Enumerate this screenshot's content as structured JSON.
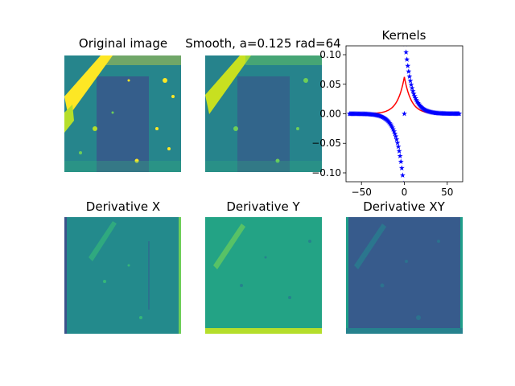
{
  "panels": [
    {
      "title": "Original image",
      "content": "satellite-style image, viridis colormap"
    },
    {
      "title": "Smooth, a=0.125 rad=64",
      "content": "smoothed image, viridis colormap"
    },
    {
      "title": "Derivative X",
      "content": "x-derivative image"
    },
    {
      "title": "Derivative Y",
      "content": "y-derivative image"
    },
    {
      "title": "Derivative XY",
      "content": "mixed derivative image"
    }
  ],
  "colors": {
    "viridis_dark": "#31688e",
    "viridis_mid": "#26828e",
    "viridis_teal": "#1f9e89",
    "viridis_yellow": "#fde725",
    "viridis_deep": "#3b528b",
    "smooth_line": "#ff0000",
    "deriv_markers": "#0000ff"
  },
  "chart_data": {
    "type": "line",
    "title": "Kernels",
    "xlabel": "",
    "ylabel": "",
    "xlim": [
      -68,
      68
    ],
    "ylim": [
      -0.115,
      0.115
    ],
    "xticks": [
      -50,
      0,
      50
    ],
    "yticks": [
      -0.1,
      -0.05,
      0.0,
      0.05,
      0.1
    ],
    "ytick_labels": [
      "−0.10",
      "−0.05",
      "0.00",
      "0.05",
      "0.10"
    ],
    "xtick_labels": [
      "−50",
      "0",
      "50"
    ],
    "grid": false,
    "legend": "none",
    "series": [
      {
        "style": "line",
        "color": "#ff0000",
        "kernel": "exponential",
        "a": 0.125,
        "rad": 64
      },
      {
        "style": "star-markers",
        "color": "#0000ff",
        "kernel": "exponential-derivative",
        "a": 0.125,
        "rad": 64
      }
    ]
  }
}
